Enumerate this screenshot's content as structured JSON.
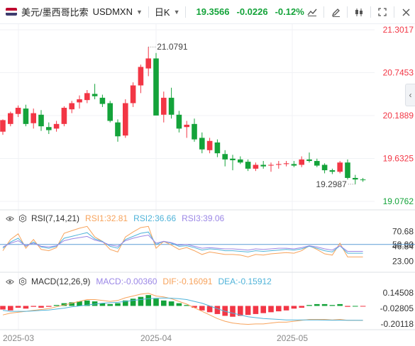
{
  "header": {
    "pair_name": "美元/墨西哥比索",
    "symbol": "USDMXN",
    "period": "日K",
    "price": "19.3566",
    "change": "-0.0226",
    "change_pct": "-0.12%",
    "flag_colors": [
      "#bf0a30",
      "#ffffff",
      "#3c3b6e"
    ],
    "tool_icons": [
      "indicator-icon",
      "draw-icon",
      "candle-type-icon",
      "fullscreen-icon",
      "close-icon"
    ]
  },
  "colors": {
    "up": "#f23645",
    "down": "#14a33a",
    "grid": "#f0f2f5",
    "rsi1": "#f7a35c",
    "rsi2": "#4fb3d9",
    "rsi3": "#9b87e6",
    "dif": "#f7a35c",
    "dea": "#4fb3d9"
  },
  "chart_data": [
    {
      "type": "candlestick",
      "title": "USDMXN 日K",
      "ylim": [
        19.0762,
        21.3017
      ],
      "y_ticks": [
        "21.3017",
        "20.7453",
        "20.1889",
        "19.6325",
        "19.0762"
      ],
      "x_ticks": [
        "2025-03",
        "2025-04",
        "2025-05"
      ],
      "annotations": {
        "high": "21.0791",
        "low": "19.2987"
      },
      "candles": [
        [
          19.98,
          20.14,
          19.94,
          20.13
        ],
        [
          20.08,
          20.24,
          20.05,
          20.22
        ],
        [
          20.21,
          20.32,
          20.17,
          20.29
        ],
        [
          20.28,
          20.33,
          20.05,
          20.08
        ],
        [
          20.09,
          20.28,
          20.02,
          20.22
        ],
        [
          20.2,
          20.26,
          19.99,
          20.05
        ],
        [
          20.04,
          20.1,
          19.95,
          20.0
        ],
        [
          20.02,
          20.12,
          19.98,
          20.08
        ],
        [
          20.08,
          20.31,
          20.05,
          20.29
        ],
        [
          20.27,
          20.38,
          20.22,
          20.35
        ],
        [
          20.36,
          20.45,
          20.28,
          20.4
        ],
        [
          20.39,
          20.52,
          20.35,
          20.48
        ],
        [
          20.47,
          20.6,
          20.4,
          20.44
        ],
        [
          20.42,
          20.46,
          20.3,
          20.34
        ],
        [
          20.35,
          20.38,
          20.1,
          20.12
        ],
        [
          20.1,
          20.14,
          19.85,
          19.92
        ],
        [
          19.93,
          20.4,
          19.9,
          20.35
        ],
        [
          20.35,
          20.62,
          20.3,
          20.58
        ],
        [
          20.58,
          20.85,
          20.48,
          20.82
        ],
        [
          20.8,
          21.08,
          20.7,
          20.93
        ],
        [
          20.93,
          21.0,
          20.2,
          20.19
        ],
        [
          20.2,
          20.5,
          20.1,
          20.42
        ],
        [
          20.42,
          20.55,
          20.15,
          20.2
        ],
        [
          20.2,
          20.25,
          19.97,
          20.02
        ],
        [
          20.04,
          20.12,
          19.9,
          20.07
        ],
        [
          20.08,
          20.15,
          19.85,
          19.88
        ],
        [
          19.9,
          19.97,
          19.7,
          19.75
        ],
        [
          19.74,
          19.9,
          19.7,
          19.86
        ],
        [
          19.84,
          19.88,
          19.65,
          19.7
        ],
        [
          19.69,
          19.74,
          19.53,
          19.62
        ],
        [
          19.63,
          19.68,
          19.48,
          19.61
        ],
        [
          19.62,
          19.66,
          19.56,
          19.58
        ],
        [
          19.59,
          19.62,
          19.47,
          19.5
        ],
        [
          19.5,
          19.58,
          19.47,
          19.55
        ],
        [
          19.55,
          19.6,
          19.5,
          19.53
        ],
        [
          19.54,
          19.58,
          19.46,
          19.55
        ],
        [
          19.55,
          19.6,
          19.5,
          19.56
        ],
        [
          19.56,
          19.6,
          19.53,
          19.57
        ],
        [
          19.56,
          19.6,
          19.52,
          19.54
        ],
        [
          19.55,
          19.66,
          19.52,
          19.62
        ],
        [
          19.62,
          19.71,
          19.58,
          19.6
        ],
        [
          19.6,
          19.63,
          19.52,
          19.54
        ],
        [
          19.55,
          19.57,
          19.44,
          19.48
        ],
        [
          19.48,
          19.5,
          19.43,
          19.46
        ],
        [
          19.46,
          19.6,
          19.44,
          19.58
        ],
        [
          19.58,
          19.62,
          19.36,
          19.38
        ],
        [
          19.38,
          19.42,
          19.3,
          19.36
        ],
        [
          19.36,
          19.38,
          19.33,
          19.356
        ]
      ]
    },
    {
      "type": "line",
      "title": "RSI(7,14,21)",
      "labels": {
        "rsi1": "RSI1:32.81",
        "rsi2": "RSI2:36.66",
        "rsi3": "RSI3:39.06"
      },
      "y_ticks": [
        "70.68",
        "50.00",
        "46.84",
        "23.00"
      ],
      "ylim": [
        10,
        85
      ],
      "reference": 50,
      "series": [
        {
          "name": "RSI1",
          "values": [
            40,
            58,
            67,
            44,
            58,
            42,
            40,
            45,
            68,
            72,
            76,
            79,
            62,
            55,
            42,
            38,
            62,
            70,
            77,
            79,
            44,
            55,
            49,
            42,
            45,
            40,
            34,
            38,
            36,
            34,
            34,
            33,
            30,
            34,
            33,
            35,
            36,
            37,
            36,
            40,
            48,
            42,
            35,
            33,
            52,
            30,
            30,
            30
          ]
        },
        {
          "name": "RSI2",
          "values": [
            44,
            54,
            60,
            47,
            54,
            46,
            44,
            47,
            60,
            63,
            66,
            69,
            59,
            55,
            47,
            44,
            58,
            63,
            68,
            70,
            50,
            55,
            52,
            47,
            48,
            45,
            41,
            43,
            42,
            40,
            40,
            39,
            38,
            40,
            39,
            40,
            41,
            42,
            41,
            43,
            47,
            44,
            40,
            38,
            48,
            36,
            36,
            36
          ]
        },
        {
          "name": "RSI3",
          "values": [
            46,
            52,
            56,
            48,
            52,
            47,
            46,
            48,
            56,
            59,
            61,
            63,
            57,
            54,
            49,
            47,
            56,
            60,
            63,
            65,
            52,
            55,
            53,
            49,
            50,
            47,
            44,
            45,
            44,
            43,
            43,
            42,
            41,
            43,
            42,
            43,
            44,
            44,
            43,
            45,
            48,
            46,
            43,
            41,
            48,
            39,
            39,
            39
          ]
        }
      ]
    },
    {
      "type": "bar+line",
      "title": "MACD(12,26,9)",
      "labels": {
        "macd": "MACD:-0.00360",
        "dif": "DIF:-0.16091",
        "dea": "DEA:-0.15912"
      },
      "y_ticks": [
        "0.14508",
        "-0.02805",
        "-0.20118"
      ],
      "ylim": [
        -0.24,
        0.2
      ],
      "macd": [
        -0.04,
        -0.05,
        -0.02,
        -0.03,
        -0.01,
        -0.02,
        -0.01,
        0.01,
        0.03,
        0.04,
        0.05,
        0.06,
        0.05,
        0.03,
        0.02,
        0.03,
        0.06,
        0.08,
        0.1,
        0.12,
        0.08,
        0.06,
        0.05,
        0.03,
        0.01,
        -0.02,
        -0.05,
        -0.07,
        -0.09,
        -0.11,
        -0.12,
        -0.11,
        -0.1,
        -0.09,
        -0.08,
        -0.07,
        -0.06,
        -0.05,
        -0.03,
        -0.02,
        0.01,
        0.02,
        0.02,
        0.01,
        0.02,
        -0.01,
        0.0,
        -0.004
      ],
      "dif": [
        -0.1,
        -0.08,
        -0.07,
        -0.06,
        -0.05,
        -0.04,
        -0.03,
        -0.01,
        0.01,
        0.03,
        0.05,
        0.07,
        0.07,
        0.06,
        0.05,
        0.06,
        0.09,
        0.11,
        0.13,
        0.14,
        0.11,
        0.1,
        0.08,
        0.05,
        0.02,
        -0.02,
        -0.06,
        -0.1,
        -0.14,
        -0.17,
        -0.19,
        -0.2,
        -0.205,
        -0.2,
        -0.2,
        -0.19,
        -0.18,
        -0.18,
        -0.17,
        -0.16,
        -0.15,
        -0.15,
        -0.15,
        -0.155,
        -0.15,
        -0.16,
        -0.16,
        -0.161
      ],
      "dea": [
        -0.05,
        -0.06,
        -0.06,
        -0.06,
        -0.055,
        -0.05,
        -0.045,
        -0.035,
        -0.025,
        -0.01,
        0.0,
        0.01,
        0.02,
        0.03,
        0.035,
        0.04,
        0.05,
        0.06,
        0.07,
        0.08,
        0.085,
        0.088,
        0.085,
        0.08,
        0.07,
        0.05,
        0.03,
        0.0,
        -0.03,
        -0.06,
        -0.08,
        -0.1,
        -0.12,
        -0.13,
        -0.14,
        -0.145,
        -0.15,
        -0.155,
        -0.155,
        -0.155,
        -0.155,
        -0.156,
        -0.157,
        -0.158,
        -0.158,
        -0.159,
        -0.159,
        -0.159
      ]
    }
  ]
}
